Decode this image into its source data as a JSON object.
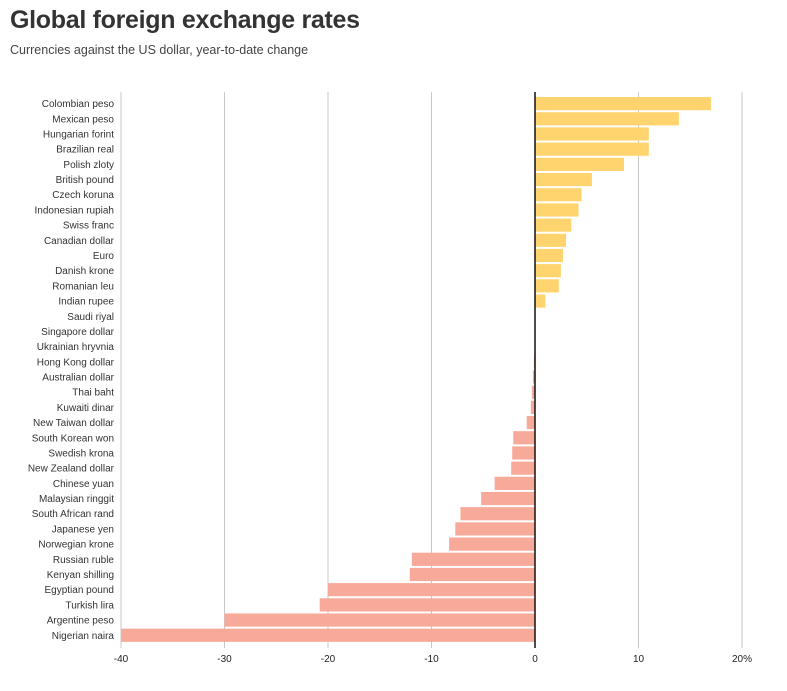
{
  "chart_data": {
    "type": "bar",
    "orientation": "horizontal",
    "title": "Global foreign exchange rates",
    "subtitle": "Currencies against the US dollar, year-to-date change",
    "xlim": [
      -40,
      20
    ],
    "x_ticks": [
      -40,
      -30,
      -20,
      -10,
      0,
      10,
      20
    ],
    "x_tick_labels": [
      "-40",
      "-30",
      "-20",
      "-10",
      "0",
      "10",
      "20%"
    ],
    "grid": "vertical",
    "colors": {
      "positive": "#ffd46e",
      "negative": "#f7a99a",
      "zero_line": "#111111",
      "grid": "#c8c8c8"
    },
    "categories": [
      "Colombian peso",
      "Mexican peso",
      "Hungarian forint",
      "Brazilian real",
      "Polish zloty",
      "British pound",
      "Czech koruna",
      "Indonesian rupiah",
      "Swiss franc",
      "Canadian dollar",
      "Euro",
      "Danish krone",
      "Romanian leu",
      "Indian rupee",
      "Saudi riyal",
      "Singapore dollar",
      "Ukrainian hryvnia",
      "Hong Kong dollar",
      "Australian dollar",
      "Thai baht",
      "Kuwaiti dinar",
      "New Taiwan dollar",
      "South Korean won",
      "Swedish krona",
      "New Zealand dollar",
      "Chinese yuan",
      "Malaysian ringgit",
      "South African rand",
      "Japanese yen",
      "Norwegian krone",
      "Russian ruble",
      "Kenyan shilling",
      "Egyptian pound",
      "Turkish lira",
      "Argentine peso",
      "Nigerian naira"
    ],
    "values": [
      17.0,
      13.9,
      11.0,
      11.0,
      8.6,
      5.5,
      4.5,
      4.2,
      3.5,
      3.0,
      2.7,
      2.5,
      2.3,
      1.0,
      0.05,
      0.0,
      0.0,
      -0.1,
      -0.2,
      -0.3,
      -0.4,
      -0.8,
      -2.1,
      -2.2,
      -2.3,
      -3.9,
      -5.2,
      -7.2,
      -7.7,
      -8.3,
      -11.9,
      -12.1,
      -20.0,
      -20.8,
      -30.0,
      -40.0
    ]
  }
}
